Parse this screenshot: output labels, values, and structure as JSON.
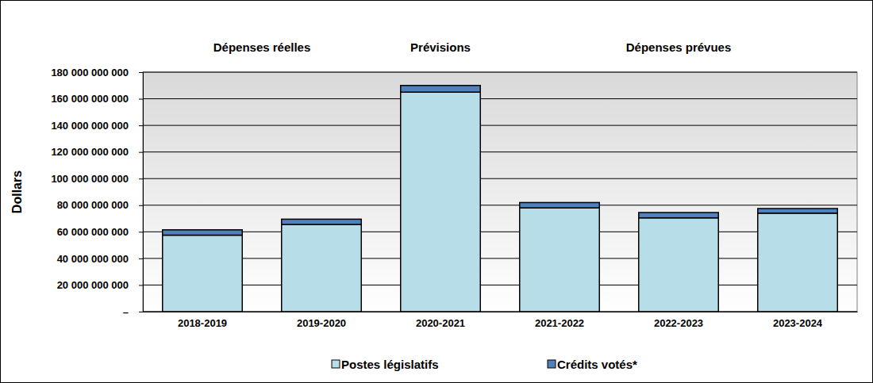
{
  "chart_data": {
    "type": "bar",
    "stacked": true,
    "y_label": "Dollars",
    "annotations": [
      {
        "text": "Dépenses réelles",
        "from": "2018-2019",
        "to": "2019-2020"
      },
      {
        "text": "Prévisions",
        "from": "2020-2021",
        "to": "2020-2021"
      },
      {
        "text": "Dépenses prévues",
        "from": "2021-2022",
        "to": "2023-2024"
      }
    ],
    "categories": [
      "2018-2019",
      "2019-2020",
      "2020-2021",
      "2021-2022",
      "2022-2023",
      "2023-2024"
    ],
    "series": [
      {
        "name": "Postes législatifs",
        "color": "#b7dde8",
        "values": [
          57500000000,
          65500000000,
          165000000000,
          78000000000,
          70500000000,
          74000000000
        ]
      },
      {
        "name": "Crédits votés*",
        "color": "#4f81bd",
        "values": [
          4000000000,
          4000000000,
          5000000000,
          4000000000,
          4000000000,
          3500000000
        ]
      }
    ],
    "ylim": [
      0,
      180000000000
    ],
    "yticks": [
      {
        "value": 0,
        "label": "–"
      },
      {
        "value": 20000000000,
        "label": "20 000 000 000"
      },
      {
        "value": 40000000000,
        "label": "40 000 000 000"
      },
      {
        "value": 60000000000,
        "label": "60 000 000 000"
      },
      {
        "value": 80000000000,
        "label": "80 000 000 000"
      },
      {
        "value": 100000000000,
        "label": "100 000 000 000"
      },
      {
        "value": 120000000000,
        "label": "120 000 000 000"
      },
      {
        "value": 140000000000,
        "label": "140 000 000 000"
      },
      {
        "value": 160000000000,
        "label": "160 000 000 000"
      },
      {
        "value": 180000000000,
        "label": "180 000 000 000"
      }
    ],
    "grid": true,
    "legend": "bottom"
  }
}
